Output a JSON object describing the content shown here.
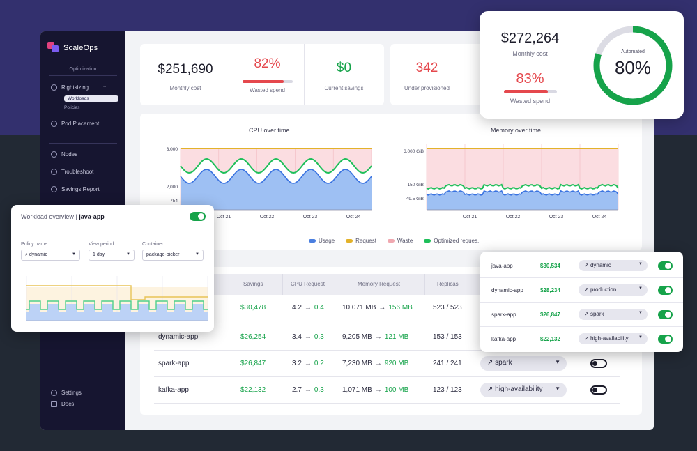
{
  "brand": {
    "name": "ScaleOps"
  },
  "sidebar": {
    "section": "Optimization",
    "items": [
      {
        "label": "Rightsizing",
        "icon": "rightsizing-icon"
      },
      {
        "label": "Pod Placement",
        "icon": "pod-placement-icon"
      },
      {
        "label": "Nodes",
        "icon": "nodes-icon"
      },
      {
        "label": "Troubleshoot",
        "icon": "troubleshoot-icon"
      },
      {
        "label": "Savings Report",
        "icon": "savings-report-icon"
      }
    ],
    "subitems": [
      "Workloads",
      "Policies"
    ],
    "bottom": [
      {
        "label": "Settings",
        "icon": "settings-icon"
      },
      {
        "label": "Docs",
        "icon": "docs-icon"
      }
    ]
  },
  "kpis": {
    "monthly_cost": {
      "value": "$251,690",
      "label": "Monthly cost"
    },
    "wasted_spend": {
      "value": "82%",
      "label": "Wasted spend",
      "fraction": 0.82
    },
    "current_savings": {
      "value": "$0",
      "label": "Current savings"
    },
    "under_provisioned": {
      "value": "342",
      "label": "Under provisioned"
    }
  },
  "float_kpis": {
    "monthly_cost": {
      "value": "$272,264",
      "label": "Monthly cost"
    },
    "wasted_spend": {
      "value": "83%",
      "label": "Wasted spend",
      "fraction": 0.83
    },
    "automated": {
      "label": "Automated",
      "value": "80%",
      "fraction": 0.8
    }
  },
  "chart_data": [
    {
      "type": "area",
      "title": "CPU over time",
      "x_ticks": [
        "Oct 21",
        "Oct 22",
        "Oct 23",
        "Oct 24"
      ],
      "y_ticks": [
        "3,000",
        "2,000",
        "754"
      ],
      "series": [
        {
          "name": "Requested",
          "values": [
            3000
          ]
        },
        {
          "name": "Optimized request",
          "values": [
            2000
          ]
        },
        {
          "name": "Usage",
          "values": [
            754
          ]
        }
      ]
    },
    {
      "type": "area",
      "title": "Memory over time",
      "x_ticks": [
        "Oct 21",
        "Oct 22",
        "Oct 23",
        "Oct 24"
      ],
      "y_ticks": [
        "3,000 GiB",
        "150 GiB",
        "49.5 GiB"
      ],
      "series": [
        {
          "name": "Requested",
          "values": [
            3000
          ]
        },
        {
          "name": "Optimized request",
          "values": [
            150
          ]
        },
        {
          "name": "Usage",
          "values": [
            49.5
          ]
        }
      ]
    }
  ],
  "legend": [
    {
      "label": "Usage",
      "color": "#4a7fe0"
    },
    {
      "label": "Request",
      "color": "#e3b22a"
    },
    {
      "label": "Waste",
      "color": "#f0a8b0"
    },
    {
      "label": "Optimized reques.",
      "color": "#1fbf5a"
    }
  ],
  "table": {
    "headers": [
      "Savings",
      "CPU Request",
      "Memory Request",
      "Replicas"
    ],
    "rows": [
      {
        "name": "",
        "savings": "$30,478",
        "cpu_from": "4.2",
        "cpu_to": "0.4",
        "mem_from": "10,071 MB",
        "mem_to": "156 MB",
        "replicas": "523 / 523",
        "policy": "",
        "auto": false
      },
      {
        "name": "dynamic-app",
        "savings": "$26,254",
        "cpu_from": "3.4",
        "cpu_to": "0.3",
        "mem_from": "9,205 MB",
        "mem_to": "121 MB",
        "replicas": "153 / 153",
        "policy": "",
        "auto": false
      },
      {
        "name": "spark-app",
        "savings": "$26,847",
        "cpu_from": "3.2",
        "cpu_to": "0.2",
        "mem_from": "7,230 MB",
        "mem_to": "920 MB",
        "replicas": "241 / 241",
        "policy": "spark",
        "auto": false
      },
      {
        "name": "kafka-app",
        "savings": "$22,132",
        "cpu_from": "2.7",
        "cpu_to": "0.3",
        "mem_from": "1,071 MB",
        "mem_to": "100 MB",
        "replicas": "123 / 123",
        "policy": "high-availability",
        "auto": false
      }
    ]
  },
  "workload_overview": {
    "title": "Workload overview",
    "workload": "java-app",
    "policy_label": "Policy name",
    "policy_value": "dynamic",
    "period_label": "View period",
    "period_value": "1 day",
    "container_label": "Container",
    "container_value": "package-picker"
  },
  "app_list": [
    {
      "name": "java-app",
      "savings": "$30,534",
      "policy": "dynamic"
    },
    {
      "name": "dynamic-app",
      "savings": "$28,234",
      "policy": "production"
    },
    {
      "name": "spark-app",
      "savings": "$26,847",
      "policy": "spark"
    },
    {
      "name": "kafka-app",
      "savings": "$22,132",
      "policy": "high-availability"
    }
  ],
  "colors": {
    "red": "#e5484d",
    "green": "#16a34a",
    "sidebar": "#161530"
  }
}
